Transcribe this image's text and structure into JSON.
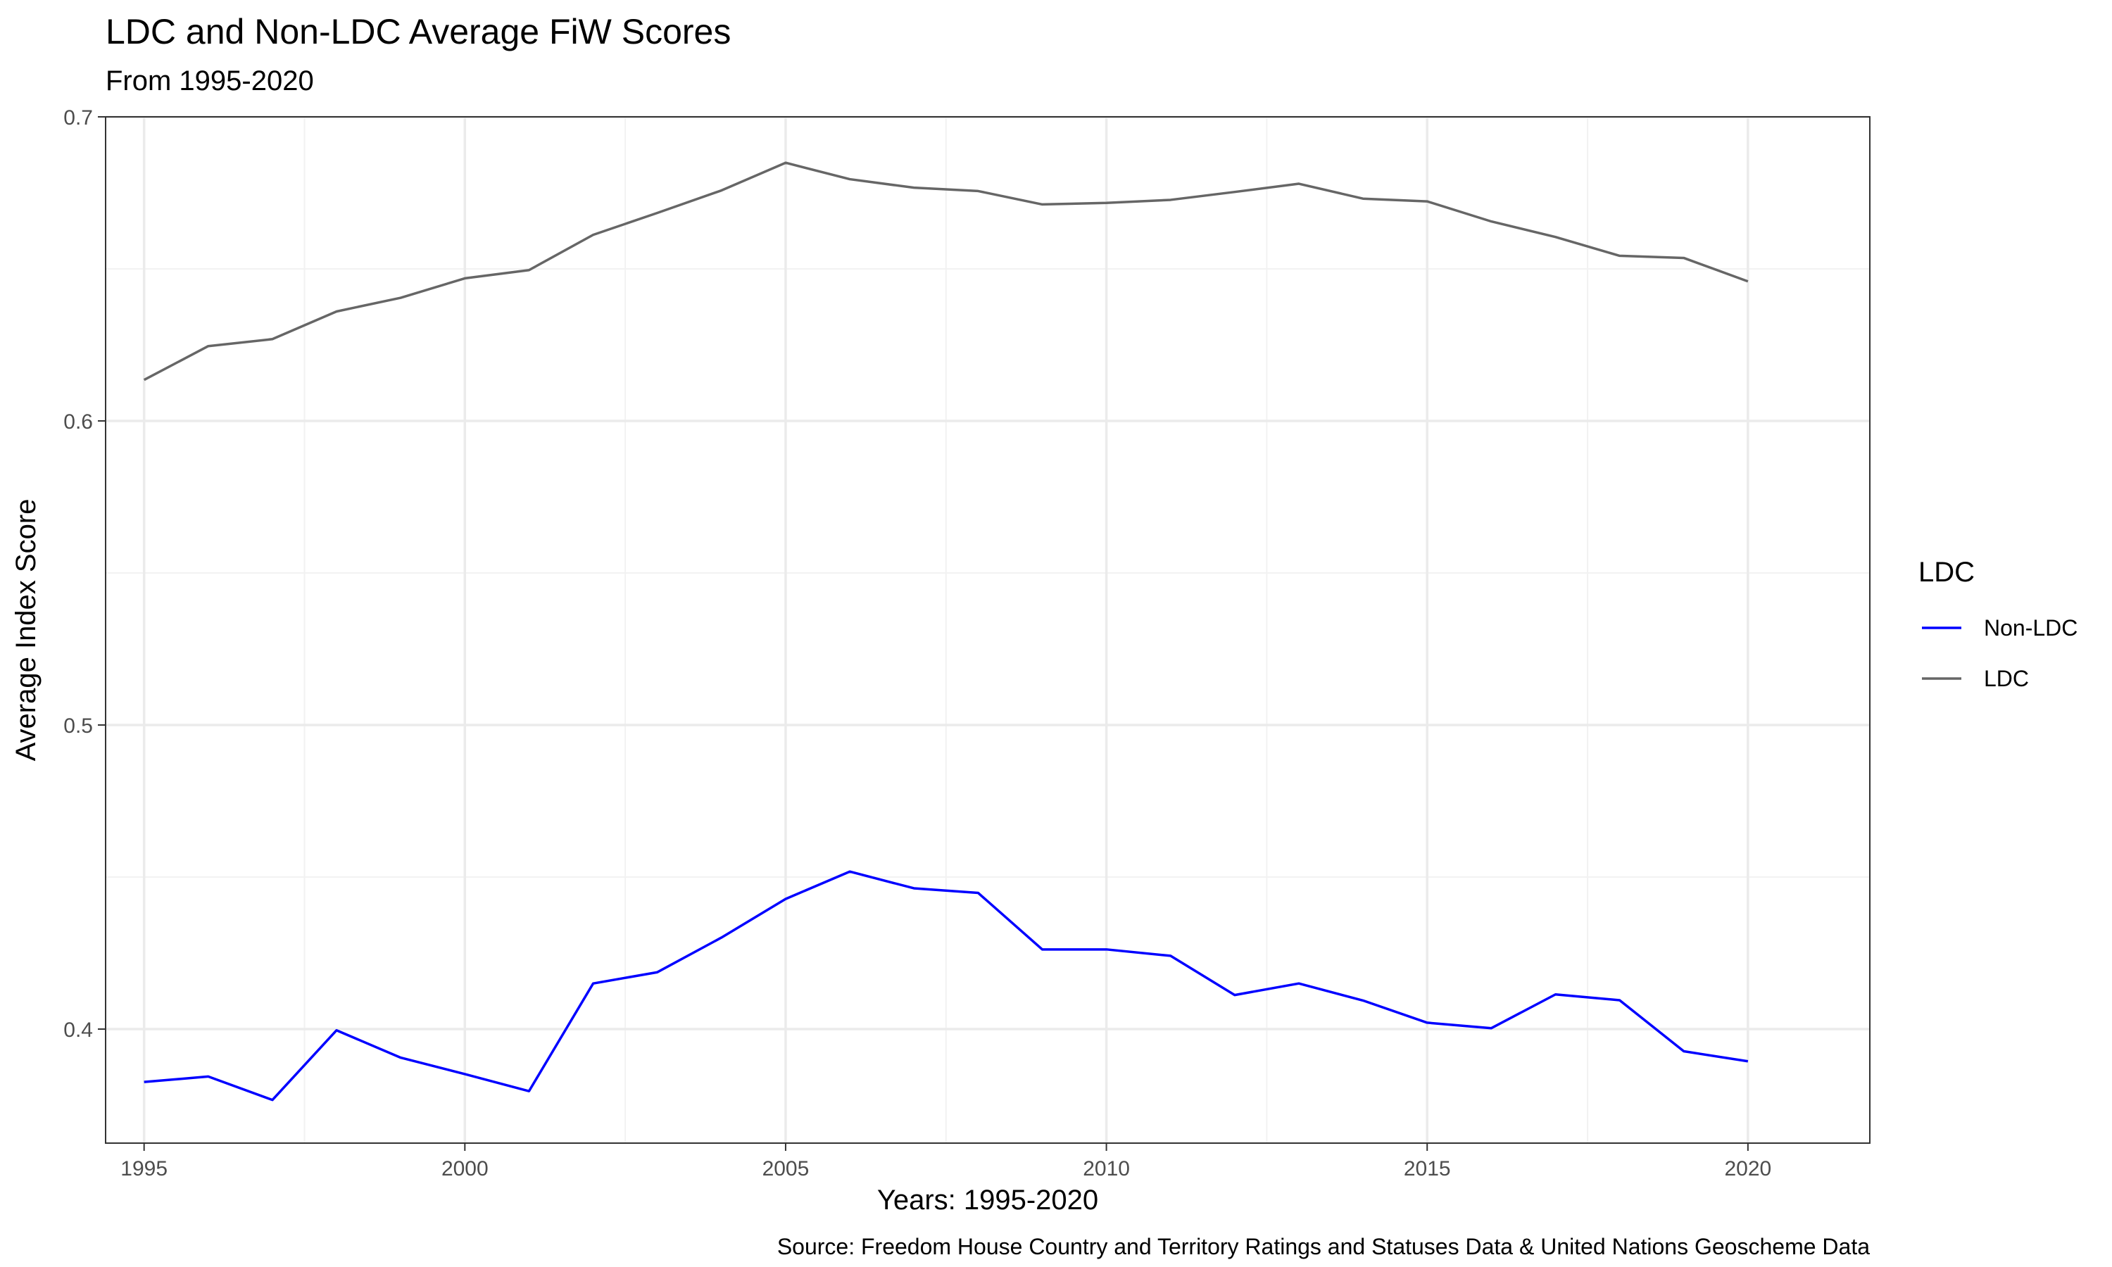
{
  "chart_data": {
    "type": "line",
    "title": "LDC and Non-LDC Average FiW Scores",
    "subtitle": "From 1995-2020",
    "xlabel": "Years: 1995-2020",
    "ylabel": "Average Index Score",
    "caption": "Source: Freedom House Country and Territory Ratings and Statuses Data & United Nations Geoscheme Data",
    "xlim": [
      1994.4,
      2021.9
    ],
    "ylim": [
      0.3625,
      0.7
    ],
    "x_ticks": [
      1995,
      2000,
      2005,
      2010,
      2015,
      2020
    ],
    "x_tick_labels": [
      "1995",
      "2000",
      "2005",
      "2010",
      "2015",
      "2020"
    ],
    "x_minor_ticks": [
      1997.5,
      2002.5,
      2007.5,
      2012.5,
      2017.5
    ],
    "y_ticks": [
      0.4,
      0.5,
      0.6,
      0.7
    ],
    "y_tick_labels": [
      "0.4",
      "0.5",
      "0.6",
      "0.7"
    ],
    "y_minor_ticks": [
      0.45,
      0.55,
      0.65
    ],
    "grid": true,
    "legend": {
      "title": "LDC",
      "position": "right"
    },
    "x": [
      1995,
      1996,
      1997,
      1998,
      1999,
      2000,
      2001,
      2002,
      2003,
      2004,
      2005,
      2006,
      2007,
      2008,
      2009,
      2010,
      2011,
      2012,
      2013,
      2014,
      2015,
      2016,
      2017,
      2018,
      2019,
      2020
    ],
    "series": [
      {
        "name": "Non-LDC",
        "color": "#0000ff",
        "values": [
          0.3826,
          0.3844,
          0.3767,
          0.3996,
          0.3906,
          0.3852,
          0.3796,
          0.415,
          0.4187,
          0.4301,
          0.4428,
          0.4518,
          0.4463,
          0.4448,
          0.4262,
          0.4262,
          0.4241,
          0.4112,
          0.415,
          0.4094,
          0.4021,
          0.4003,
          0.4114,
          0.4095,
          0.3927,
          0.3894
        ]
      },
      {
        "name": "LDC",
        "color": "#666666",
        "values": [
          0.6135,
          0.6246,
          0.6269,
          0.636,
          0.6405,
          0.6469,
          0.6496,
          0.6612,
          0.6684,
          0.6758,
          0.6849,
          0.6795,
          0.6767,
          0.6756,
          0.6712,
          0.6717,
          0.6727,
          0.6753,
          0.678,
          0.6731,
          0.6722,
          0.6656,
          0.6605,
          0.6543,
          0.6536,
          0.6459
        ]
      }
    ]
  }
}
